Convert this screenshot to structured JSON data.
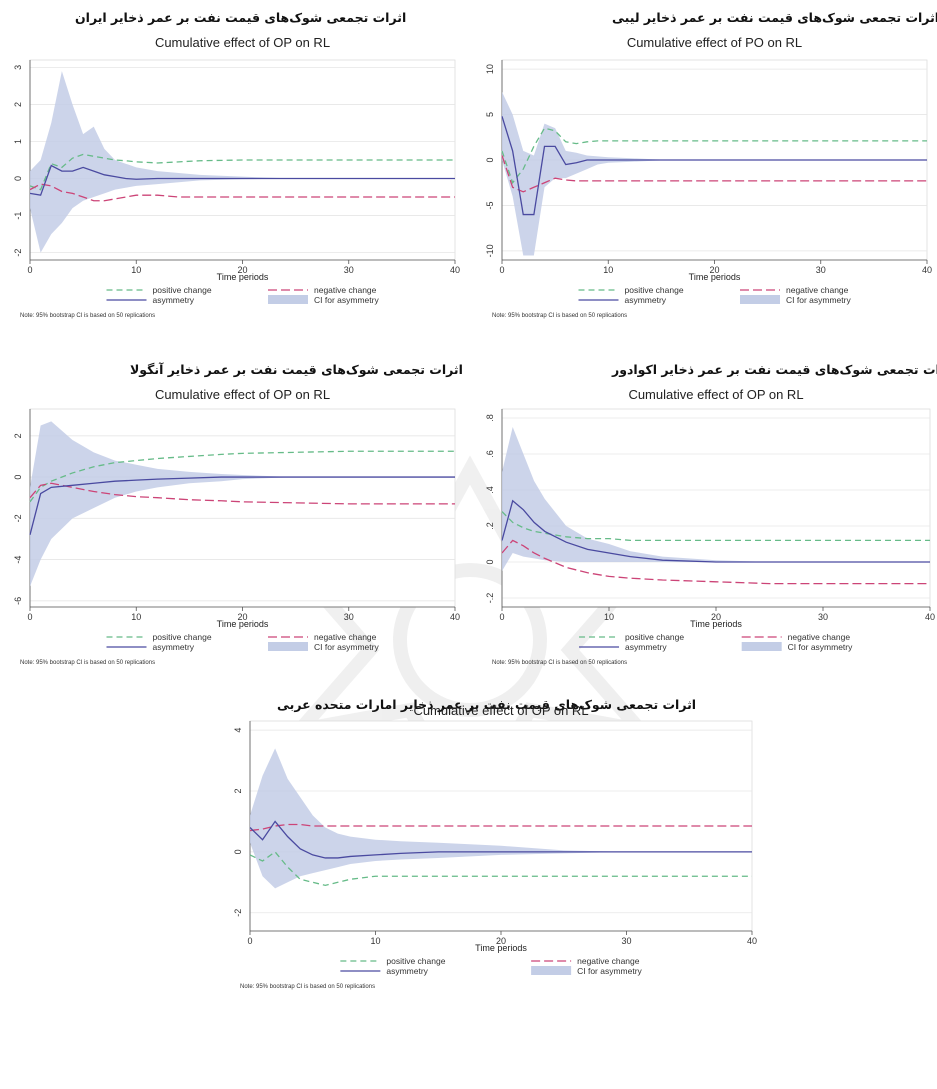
{
  "panels": [
    {
      "caption": "اثرات تجمعی شوک‌های قیمت نفت بر عمر ذخایر ایران",
      "chart_data": {
        "type": "line",
        "title": "Cumulative effect of OP on RL",
        "xlabel": "Time periods",
        "xlim": [
          0,
          40
        ],
        "ylim": [
          -2.2,
          3.2
        ],
        "xticks": [
          "0",
          "10",
          "20",
          "30",
          "40"
        ],
        "yticks": [
          "-2",
          "-1",
          "0",
          "1",
          "2",
          "3"
        ],
        "x": [
          0,
          1,
          2,
          3,
          4,
          5,
          6,
          7,
          8,
          9,
          10,
          12,
          14,
          16,
          20,
          25,
          30,
          35,
          40
        ],
        "series": [
          {
            "name": "positive change",
            "values": [
              -0.2,
              -0.3,
              0.4,
              0.3,
              0.55,
              0.65,
              0.6,
              0.55,
              0.5,
              0.48,
              0.45,
              0.42,
              0.45,
              0.48,
              0.5,
              0.5,
              0.5,
              0.5,
              0.5
            ]
          },
          {
            "name": "negative change",
            "values": [
              -0.3,
              -0.15,
              -0.2,
              -0.35,
              -0.4,
              -0.5,
              -0.6,
              -0.6,
              -0.55,
              -0.5,
              -0.45,
              -0.45,
              -0.5,
              -0.5,
              -0.5,
              -0.5,
              -0.5,
              -0.5,
              -0.5
            ]
          },
          {
            "name": "asymmetry",
            "values": [
              -0.4,
              -0.45,
              0.35,
              0.2,
              0.2,
              0.3,
              0.2,
              0.1,
              0.05,
              0.0,
              -0.02,
              0.0,
              0.0,
              0.0,
              0.0,
              0.0,
              0.0,
              0.0,
              0.0
            ]
          }
        ],
        "ci": {
          "name": "CI for asymmetry",
          "lower": [
            -0.8,
            -2.0,
            -1.5,
            -1.2,
            -0.8,
            -0.6,
            -0.5,
            -0.4,
            -0.3,
            -0.25,
            -0.2,
            -0.15,
            -0.1,
            -0.05,
            -0.02,
            0,
            0,
            0,
            0
          ],
          "upper": [
            0.2,
            0.5,
            1.5,
            2.9,
            2.0,
            1.2,
            1.4,
            0.8,
            0.5,
            0.4,
            0.3,
            0.2,
            0.15,
            0.1,
            0.05,
            0,
            0,
            0,
            0
          ]
        },
        "legend": [
          "positive change",
          "negative change",
          "asymmetry",
          "CI for asymmetry"
        ],
        "note": "Note: 95% bootstrap CI is based on 50 replications"
      }
    },
    {
      "caption": "اثرات تجمعی شوک‌های قیمت نفت بر عمر ذخایر لیبی",
      "chart_data": {
        "type": "line",
        "title": "Cumulative effect of PO on RL",
        "xlabel": "Time periods",
        "xlim": [
          0,
          40
        ],
        "ylim": [
          -11,
          11
        ],
        "xticks": [
          "0",
          "10",
          "20",
          "30",
          "40"
        ],
        "yticks": [
          "-10",
          "-5",
          "0",
          "5",
          "10"
        ],
        "x": [
          0,
          1,
          2,
          3,
          4,
          5,
          6,
          7,
          8,
          9,
          10,
          12,
          14,
          16,
          20,
          25,
          30,
          35,
          40
        ],
        "series": [
          {
            "name": "positive change",
            "values": [
              1.0,
              -2.5,
              -1.0,
              1.5,
              3.5,
              3.2,
              2.0,
              1.8,
              2.0,
              2.1,
              2.1,
              2.1,
              2.1,
              2.1,
              2.1,
              2.1,
              2.1,
              2.1,
              2.1
            ]
          },
          {
            "name": "negative change",
            "values": [
              0.5,
              -3.0,
              -3.5,
              -3.0,
              -2.5,
              -2.0,
              -2.2,
              -2.3,
              -2.3,
              -2.3,
              -2.3,
              -2.3,
              -2.3,
              -2.3,
              -2.3,
              -2.3,
              -2.3,
              -2.3,
              -2.3
            ]
          },
          {
            "name": "asymmetry",
            "values": [
              4.8,
              1.0,
              -6.0,
              -6.0,
              1.5,
              1.5,
              -0.5,
              -0.3,
              0.0,
              0.0,
              0.0,
              0.0,
              0.0,
              0.0,
              0.0,
              0.0,
              0.0,
              0.0,
              0.0
            ]
          }
        ],
        "ci": {
          "name": "CI for asymmetry",
          "lower": [
            0,
            -4,
            -10.5,
            -10.5,
            -3,
            -2,
            -2,
            -1.5,
            -1,
            -0.5,
            -0.3,
            -0.2,
            -0.1,
            0,
            0,
            0,
            0,
            0,
            0
          ],
          "upper": [
            7.5,
            5,
            1,
            0.5,
            4,
            3.5,
            1,
            0.8,
            0.5,
            0.4,
            0.3,
            0.2,
            0.1,
            0,
            0,
            0,
            0,
            0,
            0
          ]
        },
        "legend": [
          "positive change",
          "negative change",
          "asymmetry",
          "CI for asymmetry"
        ],
        "note": "Note: 95% bootstrap CI is based on 50 replications"
      }
    },
    {
      "caption": "اثرات تجمعی شوک‌های قیمت نفت بر عمر ذخایر آنگولا",
      "chart_data": {
        "type": "line",
        "title": "Cumulative effect of OP on RL",
        "xlabel": "Time periods",
        "xlim": [
          0,
          40
        ],
        "ylim": [
          -6.3,
          3.3
        ],
        "xticks": [
          "0",
          "10",
          "20",
          "30",
          "40"
        ],
        "yticks": [
          "-6",
          "-4",
          "-2",
          "0",
          "2"
        ],
        "x": [
          0,
          1,
          2,
          4,
          6,
          8,
          10,
          12,
          15,
          18,
          20,
          25,
          30,
          35,
          40
        ],
        "series": [
          {
            "name": "positive change",
            "values": [
              -1.2,
              -0.5,
              -0.2,
              0.2,
              0.5,
              0.7,
              0.8,
              0.9,
              1.0,
              1.1,
              1.15,
              1.2,
              1.25,
              1.25,
              1.25
            ]
          },
          {
            "name": "negative change",
            "values": [
              -1.0,
              -0.4,
              -0.3,
              -0.5,
              -0.7,
              -0.85,
              -0.95,
              -1.0,
              -1.1,
              -1.15,
              -1.2,
              -1.25,
              -1.3,
              -1.3,
              -1.3
            ]
          },
          {
            "name": "asymmetry",
            "values": [
              -2.8,
              -0.8,
              -0.5,
              -0.4,
              -0.3,
              -0.2,
              -0.15,
              -0.1,
              -0.05,
              0.0,
              0.0,
              0.0,
              0.0,
              0.0,
              0.0
            ]
          }
        ],
        "ci": {
          "name": "CI for asymmetry",
          "lower": [
            -5.3,
            -4.0,
            -3.0,
            -2.0,
            -1.5,
            -1.0,
            -0.7,
            -0.5,
            -0.3,
            -0.2,
            -0.1,
            0,
            0,
            0,
            0
          ],
          "upper": [
            -0.5,
            2.5,
            2.7,
            1.8,
            1.2,
            0.8,
            0.6,
            0.4,
            0.25,
            0.15,
            0.1,
            0,
            0,
            0,
            0
          ]
        },
        "legend": [
          "positive change",
          "negative change",
          "asymmetry",
          "CI for asymmetry"
        ],
        "note": "Note: 95% bootstrap CI is based on 50 replications"
      }
    },
    {
      "caption": "اثرات تجمعی شوک‌های قیمت نفت بر عمر ذخایر اکوادور",
      "chart_data": {
        "type": "line",
        "title": "Cumulative effect of OP on RL",
        "xlabel": "Time periods",
        "xlim": [
          0,
          40
        ],
        "ylim": [
          -0.25,
          0.85
        ],
        "xticks": [
          "0",
          "10",
          "20",
          "30",
          "40"
        ],
        "yticks": [
          "-.2",
          "0",
          ".2",
          ".4",
          ".6",
          ".8"
        ],
        "x": [
          0,
          1,
          2,
          3,
          4,
          6,
          8,
          10,
          12,
          15,
          20,
          25,
          30,
          35,
          40
        ],
        "series": [
          {
            "name": "positive change",
            "values": [
              0.28,
              0.22,
              0.19,
              0.17,
              0.16,
              0.14,
              0.13,
              0.13,
              0.12,
              0.12,
              0.12,
              0.12,
              0.12,
              0.12,
              0.12
            ]
          },
          {
            "name": "negative change",
            "values": [
              0.05,
              0.12,
              0.09,
              0.05,
              0.02,
              -0.03,
              -0.06,
              -0.08,
              -0.09,
              -0.1,
              -0.11,
              -0.12,
              -0.12,
              -0.12,
              -0.12
            ]
          },
          {
            "name": "asymmetry",
            "values": [
              0.12,
              0.34,
              0.29,
              0.22,
              0.17,
              0.11,
              0.07,
              0.05,
              0.03,
              0.01,
              0.0,
              0.0,
              0.0,
              0.0,
              0.0
            ]
          }
        ],
        "ci": {
          "name": "CI for asymmetry",
          "lower": [
            -0.05,
            0.05,
            0.03,
            0.02,
            0.01,
            0.0,
            0.0,
            0.0,
            0.0,
            0.0,
            0.0,
            0.0,
            0.0,
            0.0,
            0.0
          ],
          "upper": [
            0.5,
            0.75,
            0.6,
            0.45,
            0.35,
            0.2,
            0.13,
            0.1,
            0.06,
            0.03,
            0.01,
            0.0,
            0.0,
            0.0,
            0.0
          ]
        },
        "legend": [
          "positive change",
          "negative change",
          "asymmetry",
          "CI for asymmetry"
        ],
        "note": "Note: 95% bootstrap CI is based on 50 replications"
      }
    },
    {
      "caption": "اثرات تجمعی شوک‌های قیمت نفت بر عمر ذخایر امارات متحده عربی",
      "chart_data": {
        "type": "line",
        "title": "Cumulative effect of OP on RL",
        "xlabel": "Time periods",
        "xlim": [
          0,
          40
        ],
        "ylim": [
          -2.6,
          4.3
        ],
        "xticks": [
          "0",
          "10",
          "20",
          "30",
          "40"
        ],
        "yticks": [
          "-2",
          "0",
          "2",
          "4"
        ],
        "x": [
          0,
          1,
          2,
          3,
          4,
          5,
          6,
          7,
          8,
          10,
          12,
          15,
          20,
          25,
          30,
          35,
          40
        ],
        "series": [
          {
            "name": "positive change",
            "values": [
              -0.1,
              -0.3,
              0.0,
              -0.5,
              -0.9,
              -1.0,
              -1.1,
              -1.0,
              -0.9,
              -0.8,
              -0.8,
              -0.8,
              -0.8,
              -0.8,
              -0.8,
              -0.8,
              -0.8
            ]
          },
          {
            "name": "negative change",
            "values": [
              0.7,
              0.75,
              0.85,
              0.9,
              0.9,
              0.85,
              0.85,
              0.85,
              0.85,
              0.85,
              0.85,
              0.85,
              0.85,
              0.85,
              0.85,
              0.85,
              0.85
            ]
          },
          {
            "name": "asymmetry",
            "values": [
              0.8,
              0.4,
              1.0,
              0.5,
              0.1,
              -0.1,
              -0.2,
              -0.2,
              -0.15,
              -0.1,
              -0.05,
              0.0,
              0.0,
              0.0,
              0.0,
              0.0,
              0.0
            ]
          }
        ],
        "ci": {
          "name": "CI for asymmetry",
          "lower": [
            0.3,
            -0.8,
            -1.2,
            -1.0,
            -0.8,
            -0.7,
            -0.6,
            -0.5,
            -0.4,
            -0.3,
            -0.25,
            -0.2,
            -0.1,
            -0.05,
            0,
            0,
            0
          ],
          "upper": [
            1.2,
            2.5,
            3.4,
            2.4,
            1.8,
            1.2,
            0.8,
            0.6,
            0.5,
            0.4,
            0.35,
            0.3,
            0.2,
            0.05,
            0,
            0,
            0
          ]
        },
        "legend": [
          "positive change",
          "negative change",
          "asymmetry",
          "CI for asymmetry"
        ],
        "note": "Note: 95% bootstrap CI is based on 50 replications"
      }
    }
  ],
  "colors": {
    "positive": "#66bb88",
    "negative": "#cc4477",
    "asymmetry": "#4a4aa0",
    "ci_fill": "#c3cde6",
    "axis": "#555555"
  }
}
